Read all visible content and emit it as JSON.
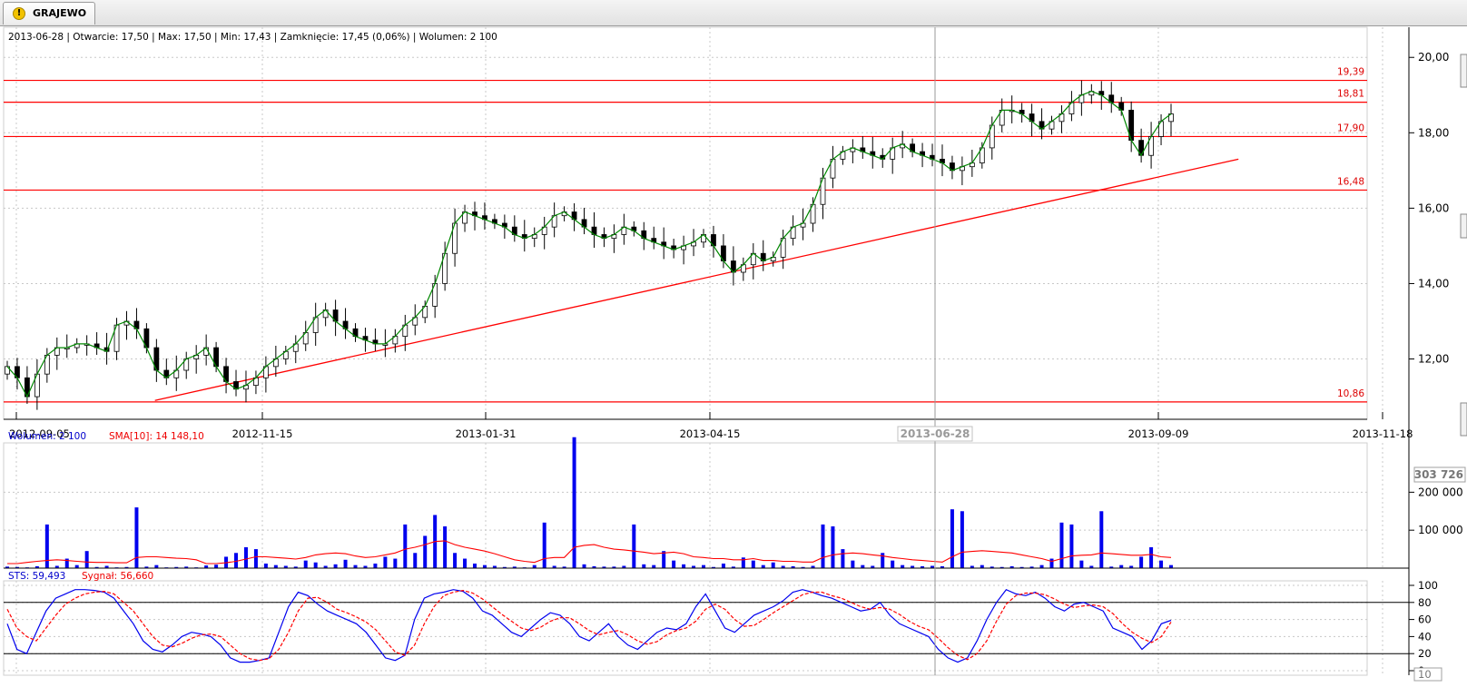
{
  "tab": {
    "label": "GRAJEWO",
    "icon": "warning-icon"
  },
  "info_bar": "2013-06-28 | Otwarcie: 17,50 | Max: 17,50 | Min: 17,43 | Zamknięcie: 17,45 (0,06%)  | Wolumen: 2 100",
  "volume_header": {
    "volume_text": "Wolumen: 2 100",
    "sma_text": "SMA[10]: 14 148,10"
  },
  "stoch_header": {
    "sts_text": "STS: 59,493",
    "signal_text": "Sygnał: 56,660"
  },
  "crosshair_date": "2013-06-28",
  "chart_data": [
    {
      "type": "candlestick",
      "x_ticks": [
        "2012-09-05",
        "2012-11-15",
        "2013-01-31",
        "2013-04-15",
        "2013-06-28",
        "2013-09-09",
        "2013-11-18"
      ],
      "y_ticks": [
        "12,00",
        "14,00",
        "16,00",
        "18,00",
        "20,00"
      ],
      "ylim": [
        10.4,
        20.8
      ],
      "price_levels": [
        19.39,
        18.81,
        17.9,
        16.48,
        10.86
      ],
      "price_level_labels": [
        "19,39",
        "18,81",
        "17,90",
        "16,48",
        "10,86"
      ],
      "trend_line": {
        "from": [
          "2012-10-15",
          10.9
        ],
        "to": [
          "2013-10-04",
          17.3
        ]
      },
      "close_series": [
        11.8,
        11.5,
        11.0,
        11.6,
        12.1,
        12.3,
        12.3,
        12.4,
        12.4,
        12.3,
        12.2,
        12.9,
        13.0,
        12.8,
        12.3,
        11.7,
        11.5,
        11.7,
        12.0,
        12.1,
        12.3,
        11.8,
        11.4,
        11.2,
        11.3,
        11.5,
        11.8,
        12.0,
        12.2,
        12.4,
        12.7,
        13.1,
        13.3,
        13.0,
        12.8,
        12.6,
        12.5,
        12.4,
        12.4,
        12.6,
        12.9,
        13.1,
        13.4,
        14.0,
        14.8,
        15.6,
        15.9,
        15.8,
        15.7,
        15.6,
        15.5,
        15.3,
        15.2,
        15.3,
        15.5,
        15.8,
        15.9,
        15.7,
        15.5,
        15.3,
        15.2,
        15.3,
        15.5,
        15.4,
        15.2,
        15.1,
        15.0,
        14.9,
        15.0,
        15.1,
        15.3,
        15.0,
        14.6,
        14.3,
        14.5,
        14.8,
        14.6,
        14.7,
        15.2,
        15.5,
        15.6,
        16.1,
        16.8,
        17.3,
        17.5,
        17.6,
        17.5,
        17.4,
        17.3,
        17.6,
        17.7,
        17.5,
        17.4,
        17.3,
        17.2,
        17.0,
        17.1,
        17.2,
        17.6,
        18.2,
        18.6,
        18.6,
        18.5,
        18.3,
        18.1,
        18.3,
        18.5,
        18.8,
        19.0,
        19.1,
        19.0,
        18.8,
        18.6,
        17.8,
        17.4,
        17.9,
        18.3,
        18.5
      ]
    },
    {
      "type": "bar",
      "y_ticks": [
        "100 000",
        "200 000"
      ],
      "marker_label": "303 726",
      "ylim": [
        0,
        330000
      ],
      "series": [
        {
          "name": "Wolumen",
          "color": "#0000ee",
          "values": [
            4000,
            3000,
            2000,
            5000,
            115000,
            6000,
            25000,
            8000,
            45000,
            3000,
            6000,
            2000,
            3000,
            160000,
            4000,
            8000,
            2000,
            3000,
            4000,
            2000,
            7000,
            9000,
            30000,
            40000,
            55000,
            50000,
            12000,
            8000,
            6000,
            4000,
            20000,
            15000,
            6000,
            10000,
            22000,
            8000,
            6000,
            12000,
            30000,
            25000,
            115000,
            40000,
            85000,
            140000,
            110000,
            40000,
            25000,
            12000,
            8000,
            6000,
            3000,
            4000,
            2000,
            8000,
            120000,
            6000,
            4000,
            345000,
            10000,
            5000,
            4000,
            4000,
            6000,
            115000,
            10000,
            8000,
            45000,
            20000,
            10000,
            6000,
            8000,
            3000,
            12000,
            4000,
            28000,
            20000,
            8000,
            15000,
            6000,
            5000,
            3000,
            6000,
            115000,
            110000,
            50000,
            20000,
            8000,
            6000,
            40000,
            20000,
            8000,
            6000,
            5000,
            6000,
            5000,
            155000,
            150000,
            6000,
            8000,
            4000,
            3000,
            5000,
            3000,
            4000,
            8000,
            25000,
            120000,
            115000,
            20000,
            6000,
            150000,
            4000,
            8000,
            6000,
            30000,
            55000,
            20000,
            8000
          ]
        },
        {
          "name": "SMA[10]",
          "color": "#ff0000",
          "values": [
            12000,
            12000,
            15000,
            18000,
            20000,
            22000,
            20000,
            18000,
            16000,
            15000,
            15000,
            14000,
            14000,
            28000,
            30000,
            30000,
            28000,
            26000,
            25000,
            22000,
            12000,
            12000,
            14000,
            18000,
            24000,
            30000,
            30000,
            28000,
            26000,
            24000,
            28000,
            35000,
            38000,
            40000,
            38000,
            32000,
            28000,
            30000,
            35000,
            40000,
            50000,
            55000,
            62000,
            70000,
            72000,
            62000,
            55000,
            50000,
            45000,
            38000,
            30000,
            22000,
            18000,
            15000,
            25000,
            28000,
            28000,
            55000,
            60000,
            62000,
            55000,
            50000,
            48000,
            45000,
            42000,
            38000,
            40000,
            42000,
            38000,
            30000,
            28000,
            25000,
            25000,
            22000,
            22000,
            25000,
            20000,
            20000,
            18000,
            18000,
            16000,
            16000,
            28000,
            35000,
            38000,
            40000,
            38000,
            35000,
            32000,
            28000,
            25000,
            22000,
            20000,
            18000,
            16000,
            30000,
            42000,
            44000,
            46000,
            44000,
            42000,
            40000,
            35000,
            30000,
            25000,
            18000,
            25000,
            32000,
            34000,
            35000,
            40000,
            38000,
            36000,
            34000,
            34000,
            36000,
            30000,
            28000
          ]
        }
      ]
    },
    {
      "type": "line",
      "y_ticks": [
        "0",
        "20",
        "40",
        "60",
        "80",
        "100"
      ],
      "marker_label": "10",
      "ylim": [
        0,
        100
      ],
      "levels": [
        20,
        80
      ],
      "series": [
        {
          "name": "STS",
          "color": "#0000ee",
          "values": [
            55,
            25,
            20,
            45,
            70,
            85,
            90,
            95,
            95,
            94,
            92,
            85,
            70,
            55,
            35,
            25,
            22,
            30,
            40,
            45,
            43,
            40,
            30,
            15,
            10,
            10,
            12,
            15,
            45,
            75,
            92,
            88,
            78,
            70,
            65,
            60,
            55,
            45,
            30,
            15,
            12,
            18,
            60,
            85,
            90,
            92,
            95,
            93,
            85,
            70,
            65,
            55,
            45,
            40,
            50,
            60,
            68,
            65,
            55,
            40,
            35,
            45,
            55,
            40,
            30,
            25,
            35,
            45,
            50,
            48,
            55,
            75,
            90,
            70,
            50,
            45,
            55,
            65,
            70,
            75,
            82,
            92,
            95,
            92,
            88,
            85,
            80,
            75,
            70,
            72,
            80,
            65,
            55,
            50,
            45,
            40,
            25,
            15,
            10,
            15,
            35,
            60,
            80,
            95,
            90,
            88,
            92,
            85,
            75,
            70,
            78,
            80,
            75,
            70,
            50,
            45,
            40,
            25,
            35,
            55,
            59
          ]
        },
        {
          "name": "Sygnał",
          "color": "#ff0000",
          "values": [
            72,
            50,
            40,
            35,
            50,
            65,
            78,
            85,
            90,
            92,
            93,
            90,
            80,
            70,
            55,
            40,
            30,
            28,
            32,
            38,
            42,
            43,
            40,
            30,
            20,
            14,
            12,
            14,
            25,
            45,
            70,
            85,
            86,
            80,
            72,
            68,
            63,
            57,
            48,
            35,
            22,
            18,
            30,
            55,
            75,
            88,
            92,
            94,
            91,
            84,
            75,
            66,
            58,
            50,
            47,
            51,
            58,
            62,
            62,
            55,
            47,
            42,
            45,
            47,
            42,
            35,
            31,
            34,
            42,
            47,
            50,
            58,
            72,
            78,
            72,
            60,
            52,
            53,
            60,
            68,
            75,
            82,
            89,
            92,
            92,
            88,
            85,
            80,
            75,
            72,
            74,
            72,
            66,
            58,
            52,
            48,
            38,
            27,
            18,
            13,
            20,
            35,
            58,
            78,
            88,
            91,
            91,
            89,
            84,
            78,
            74,
            76,
            77,
            75,
            67,
            55,
            45,
            38,
            33,
            40,
            57
          ]
        }
      ]
    }
  ]
}
